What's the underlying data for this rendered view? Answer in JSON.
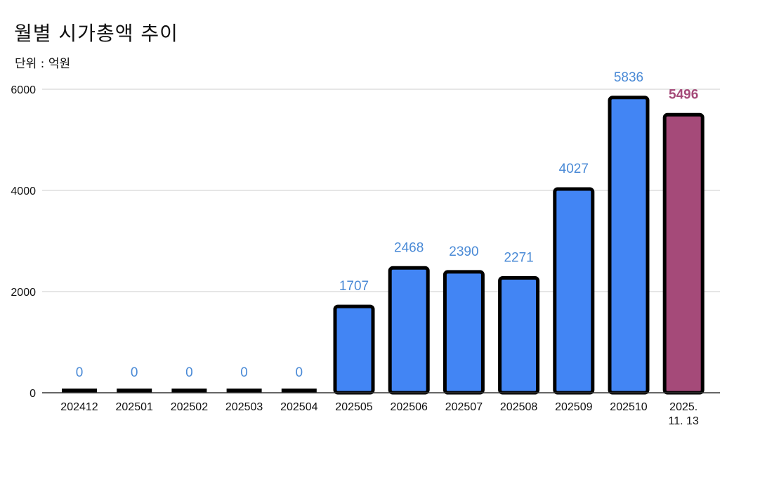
{
  "title": "월별 시가총액 추이",
  "subtitle": "단위 : 억원",
  "colors": {
    "bar_default": "#4285f4",
    "bar_highlight": "#a54a79",
    "label_default": "#4a8ad6",
    "label_highlight": "#a54a79",
    "bar_outline": "#000000",
    "gridline": "#cccccc",
    "axis": "#333333"
  },
  "chart_data": {
    "type": "bar",
    "title": "월별 시가총액 추이",
    "subtitle": "단위 : 억원",
    "xlabel": "",
    "ylabel": "",
    "ylim": [
      0,
      6000
    ],
    "yticks": [
      0,
      2000,
      4000,
      6000
    ],
    "grid": true,
    "legend": "none",
    "categories": [
      "202412",
      "202501",
      "202502",
      "202503",
      "202504",
      "202505",
      "202506",
      "202507",
      "202508",
      "202509",
      "202510",
      "2025.\n11. 13"
    ],
    "values": [
      0,
      0,
      0,
      0,
      0,
      1707,
      2468,
      2390,
      2271,
      4027,
      5836,
      5496
    ],
    "highlight_index": 11
  }
}
